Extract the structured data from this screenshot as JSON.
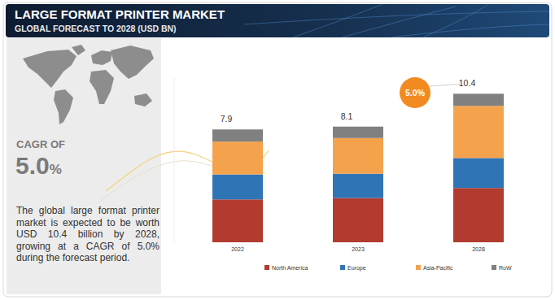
{
  "chart_data": {
    "type": "bar",
    "stacked": true,
    "title": "LARGE FORMAT PRINTER MARKET",
    "subtitle": "GLOBAL FORECAST TO 2028 (USD BN)",
    "categories": [
      "2022",
      "2023",
      "2028"
    ],
    "series": [
      {
        "name": "North America",
        "color": "#b23a2f",
        "values": [
          3.0,
          3.1,
          3.8
        ]
      },
      {
        "name": "Europe",
        "color": "#2f74b5",
        "values": [
          1.75,
          1.7,
          2.1
        ]
      },
      {
        "name": "Asia-Pacific",
        "color": "#f4a24c",
        "values": [
          2.3,
          2.5,
          3.65
        ]
      },
      {
        "name": "RoW",
        "color": "#808080",
        "values": [
          0.85,
          0.8,
          0.85
        ]
      }
    ],
    "totals": [
      7.9,
      8.1,
      10.4
    ],
    "annotation": "5.0%",
    "ylim": [
      0,
      11.5
    ],
    "tick_labels": "x",
    "legend": "bottom"
  },
  "sidebar": {
    "cagr_label": "CAGR OF",
    "cagr_value": "5.0%",
    "description": "The global large format printer market is expected to be worth USD 10.4 billion by 2028, growing at a CAGR of 5.0% during the forecast period."
  }
}
